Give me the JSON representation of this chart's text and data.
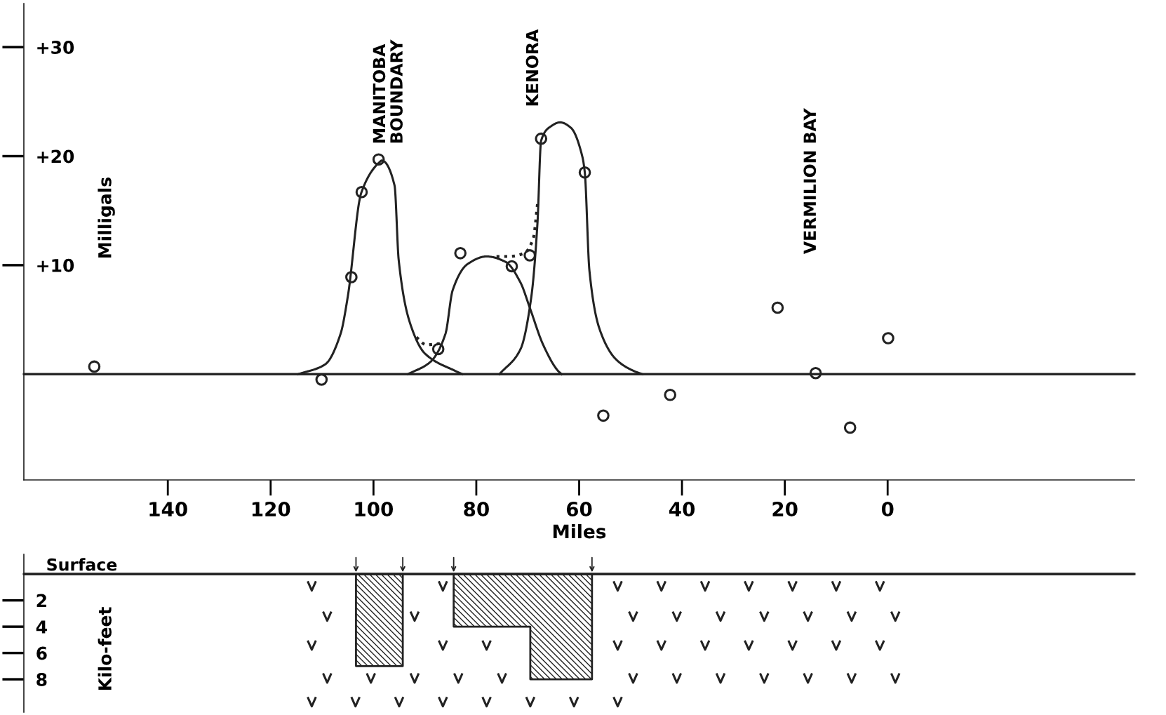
{
  "chart_data": [
    {
      "type": "line",
      "ylabel": "Milligals",
      "xlabel": "Miles",
      "xlim": [
        168,
        -48
      ],
      "xticks": [
        140,
        120,
        100,
        80,
        60,
        40,
        20,
        0
      ],
      "ylim": [
        -9.7,
        34
      ],
      "yticks": [
        {
          "value": 10,
          "label": "+10"
        },
        {
          "value": 20,
          "label": "+20"
        },
        {
          "value": 30,
          "label": "+30"
        }
      ],
      "grid": false,
      "legend": false,
      "ref_lines": [
        {
          "axis": "y",
          "value": 0,
          "color": "#222222"
        }
      ],
      "annotations": [
        "MANITOBA\nBOUNDARY",
        "KENORA",
        "VERMILION BAY"
      ],
      "series": [
        {
          "type": "scatter",
          "marker": "circle",
          "color": "#222222",
          "x": [
            154.3,
            110.1,
            104.3,
            102.3,
            99,
            87.4,
            83.1,
            73.1,
            69.6,
            67.4,
            58.9,
            55.3,
            42.3,
            21.4,
            14,
            7.3,
            -0.1
          ],
          "values": [
            0.7,
            -0.5,
            8.9,
            16.7,
            19.7,
            2.3,
            11.1,
            9.9,
            10.9,
            21.6,
            18.5,
            -3.8,
            -1.9,
            6.1,
            0.1,
            -4.9,
            3.3
          ]
        },
        {
          "type": "line",
          "marker": "none",
          "line_style": "solid",
          "color": "#222222",
          "x": [
            114.6,
            109.4,
            106.4,
            105,
            102.4,
            98.7,
            98.4,
            95.9,
            95.1,
            92.9,
            90,
            84.1,
            82.7
          ],
          "values": [
            0,
            0.9,
            3.7,
            7.1,
            16.6,
            19.5,
            19.6,
            17.3,
            10.5,
            4.7,
            1.9,
            0.3,
            0
          ]
        },
        {
          "type": "line",
          "marker": "none",
          "line_style": "solid",
          "color": "#222222",
          "x": [
            93.3,
            89,
            86,
            84.6,
            81.7,
            78,
            74.3,
            71.4,
            69.6,
            67,
            64.1,
            63.4
          ],
          "values": [
            0,
            1.1,
            3.7,
            7.7,
            10.1,
            10.8,
            10.3,
            8.4,
            6.1,
            2.7,
            0.3,
            0
          ]
        },
        {
          "type": "line",
          "marker": "none",
          "line_style": "solid",
          "color": "#222222",
          "x": [
            75.5,
            71.4,
            69.3,
            68.1,
            67.4,
            65.6,
            63.7,
            61.6,
            59.4,
            58.9,
            58,
            56,
            52.7,
            49.4,
            47.7
          ],
          "values": [
            0,
            2.3,
            7.1,
            13.9,
            21.4,
            22.7,
            23.1,
            22.6,
            20,
            18.5,
            9.5,
            4.1,
            1.3,
            0.3,
            0
          ]
        },
        {
          "type": "line",
          "marker": "none",
          "line_style": "dotted",
          "color": "#222222",
          "x": [
            91.9,
            89.7,
            87.1,
            null,
            76.6,
            73.6,
            70.7,
            68.9,
            68.1
          ],
          "values": [
            3.5,
            2.7,
            2.8,
            null,
            10.8,
            10.8,
            11.1,
            12.5,
            15.6
          ]
        }
      ]
    },
    {
      "type": "area",
      "ylabel": "Kilo-feet",
      "xlim": [
        168,
        -48
      ],
      "ylim": [
        10.5,
        -1.5
      ],
      "yticks": [
        2,
        4,
        6,
        8
      ],
      "tick_labels": "y",
      "grid": false,
      "legend": false,
      "ref_lines": [
        {
          "axis": "y",
          "value": 0,
          "label": "Surface",
          "color": "#222222"
        }
      ],
      "series": [
        {
          "color": "#222222",
          "x": [
            103.4,
            103.4,
            94.3,
            94.3
          ],
          "values": [
            0,
            7,
            7,
            0
          ]
        },
        {
          "color": "#222222",
          "x": [
            84.4,
            84.4,
            69.5,
            69.5,
            57.5,
            57.5
          ],
          "values": [
            0,
            4,
            4,
            8,
            8,
            0
          ]
        }
      ]
    }
  ]
}
